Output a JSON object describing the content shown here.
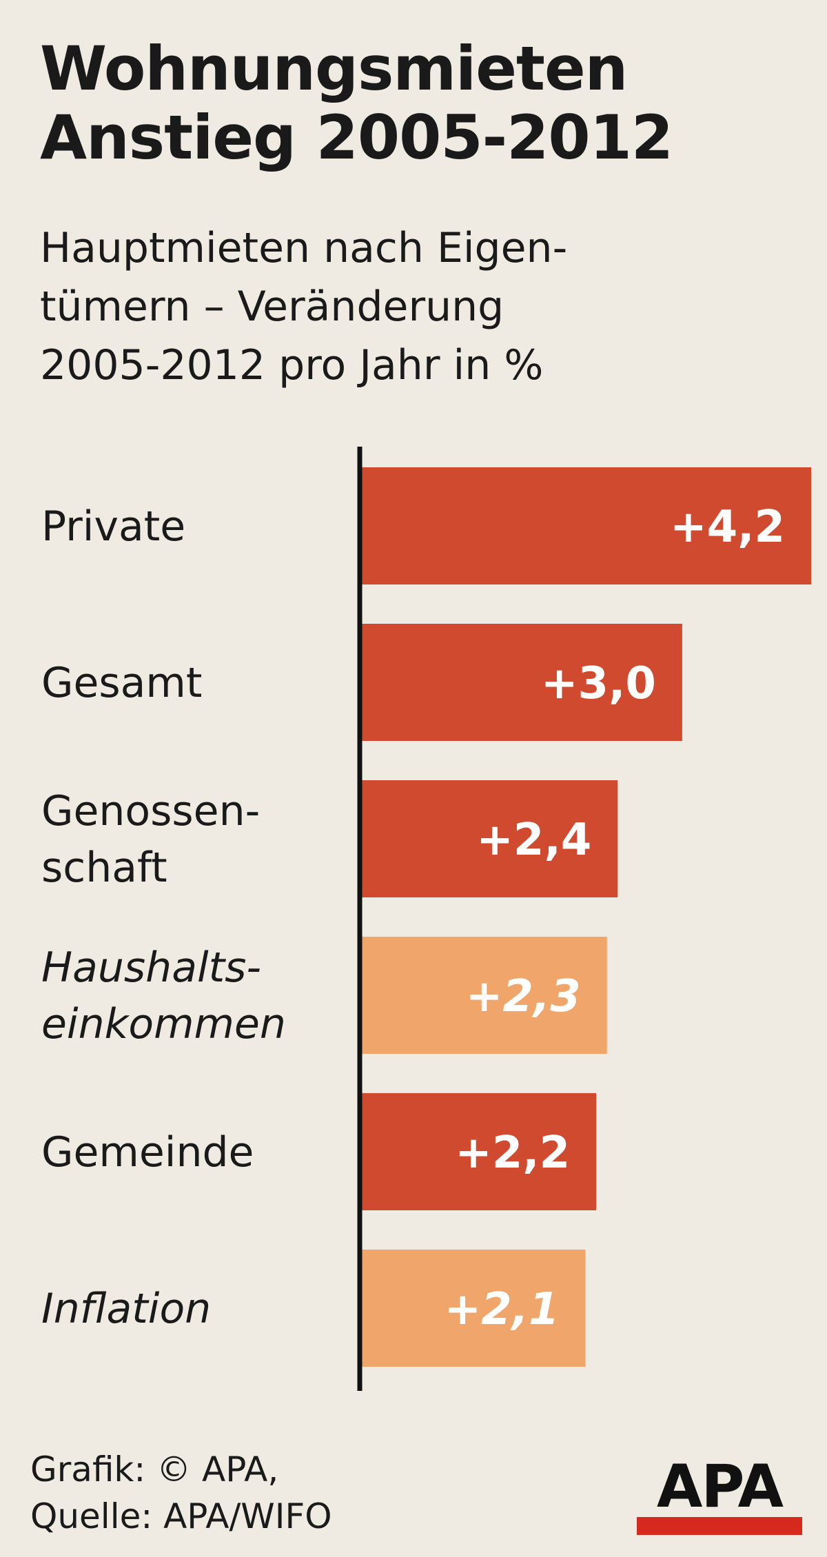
{
  "header": {
    "title": "Wohnungsmieten\nAnstieg 2005-2012",
    "subtitle": "Hauptmieten nach Eigen-\ntümern – Veränderung\n2005-2012 pro Jahr in %"
  },
  "chart_data": {
    "type": "bar",
    "orientation": "horizontal",
    "title": "Wohnungsmieten Anstieg 2005-2012",
    "subtitle": "Hauptmieten nach Eigentümern – Veränderung 2005-2012 pro Jahr in %",
    "categories": [
      "Private",
      "Gesamt",
      "Genossen-\nschaft",
      "Haushalts-\neinkommen",
      "Gemeinde",
      "Inflation"
    ],
    "values": [
      4.2,
      3.0,
      2.4,
      2.3,
      2.2,
      2.1
    ],
    "value_labels": [
      "+4,2",
      "+3,0",
      "+2,4",
      "+2,3",
      "+2,2",
      "+2,1"
    ],
    "highlight": [
      false,
      false,
      false,
      true,
      false,
      true
    ],
    "colors": {
      "primary": "#cf4a2e",
      "highlight": "#f0a56a"
    },
    "xlim": [
      0,
      4.2
    ],
    "grid": false,
    "legend": "none"
  },
  "footer": {
    "credit": "Grafik: © APA,\nQuelle: APA/WIFO"
  },
  "logo": {
    "text": "APA",
    "bar_color": "#d62a1e"
  }
}
